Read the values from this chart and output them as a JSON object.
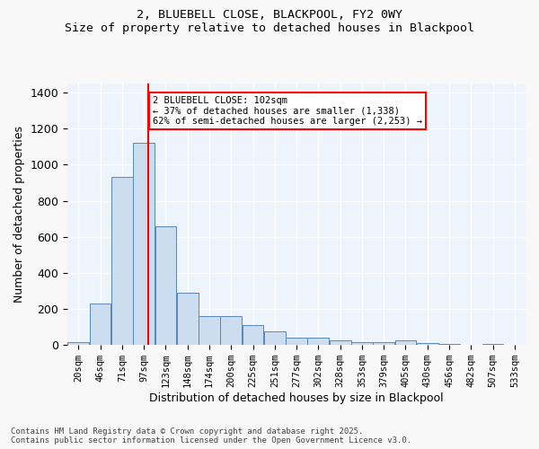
{
  "title_line1": "2, BLUEBELL CLOSE, BLACKPOOL, FY2 0WY",
  "title_line2": "Size of property relative to detached houses in Blackpool",
  "xlabel": "Distribution of detached houses by size in Blackpool",
  "ylabel": "Number of detached properties",
  "bar_color": "#ccddf0",
  "bar_edge_color": "#5588bb",
  "background_color": "#eef4fb",
  "grid_color": "#ffffff",
  "annotation_line_color": "red",
  "property_size": 102,
  "annotation_text_line1": "2 BLUEBELL CLOSE: 102sqm",
  "annotation_text_line2": "← 37% of detached houses are smaller (1,338)",
  "annotation_text_line3": "62% of semi-detached houses are larger (2,253) →",
  "footer_line1": "Contains HM Land Registry data © Crown copyright and database right 2025.",
  "footer_line2": "Contains public sector information licensed under the Open Government Licence v3.0.",
  "categories": [
    "20sqm",
    "46sqm",
    "71sqm",
    "97sqm",
    "123sqm",
    "148sqm",
    "174sqm",
    "200sqm",
    "225sqm",
    "251sqm",
    "277sqm",
    "302sqm",
    "328sqm",
    "353sqm",
    "379sqm",
    "405sqm",
    "430sqm",
    "456sqm",
    "482sqm",
    "507sqm",
    "533sqm"
  ],
  "bin_edges": [
    7.5,
    33,
    58.5,
    84,
    109.5,
    135,
    160.5,
    186,
    211.5,
    237,
    262.5,
    288,
    313.5,
    339,
    364.5,
    390,
    415.5,
    441,
    466.5,
    492,
    517.5,
    543
  ],
  "values": [
    15,
    230,
    930,
    1120,
    660,
    290,
    162,
    158,
    112,
    75,
    42,
    42,
    25,
    18,
    15,
    25,
    12,
    5,
    2,
    8,
    0
  ],
  "ylim": [
    0,
    1450
  ],
  "yticks": [
    0,
    200,
    400,
    600,
    800,
    1000,
    1200,
    1400
  ]
}
